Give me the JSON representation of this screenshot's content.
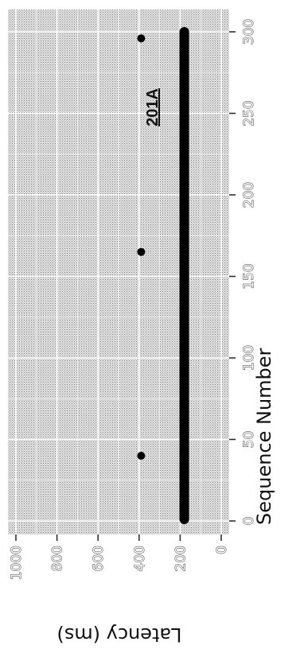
{
  "chart_data": {
    "type": "scatter",
    "orientation": "rotated 90 degrees clockwise",
    "title": "",
    "xlabel": "Sequence Number",
    "ylabel": "Latency (ms)",
    "xlim": [
      0,
      300
    ],
    "ylim": [
      0,
      1000
    ],
    "x_ticks": [
      "0",
      "50",
      "100",
      "150",
      "200",
      "250",
      "300"
    ],
    "y_ticks": [
      "0",
      "200",
      "400",
      "600",
      "800",
      "1000"
    ],
    "grid": true,
    "legend": "none",
    "annotation": "201A",
    "baseline": {
      "x_start": 1,
      "x_end": 300,
      "y": 180
    },
    "outliers": [
      {
        "x": 40,
        "y": 390
      },
      {
        "x": 165,
        "y": 390
      },
      {
        "x": 296,
        "y": 390
      }
    ],
    "colors": {
      "panel": "#dcdcdc",
      "points": "#000000",
      "grid": "#ffffff"
    }
  }
}
